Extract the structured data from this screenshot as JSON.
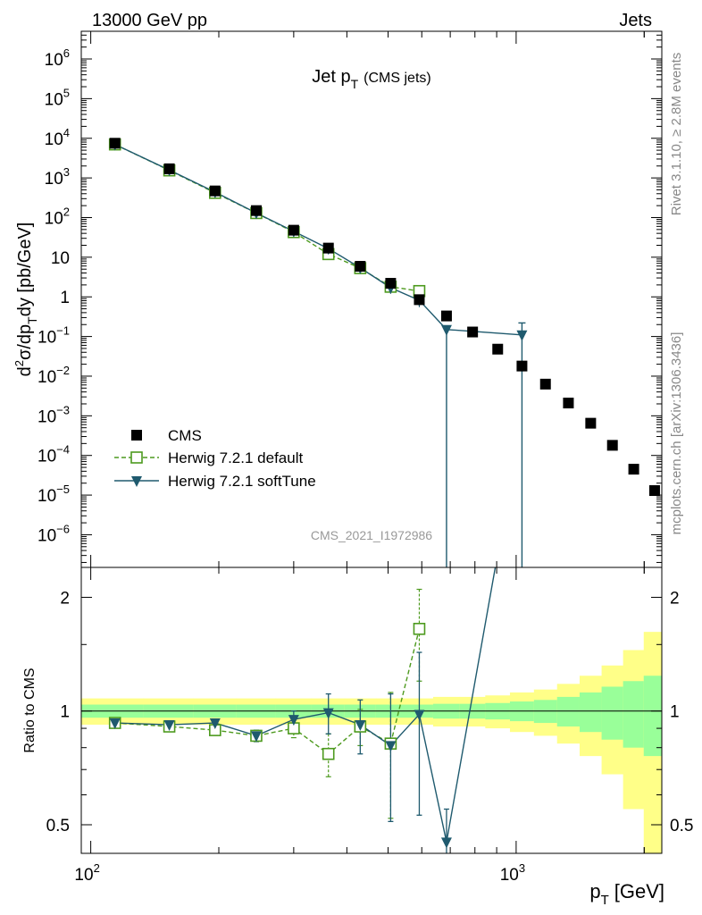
{
  "header": {
    "left_label": "13000 GeV pp",
    "right_label": "Jets"
  },
  "side_labels": {
    "rivet": "Rivet 3.1.10, ≥ 2.8M events",
    "mcplots": "mcplots.cern.ch [arXiv:1306.3436]"
  },
  "watermark": "CMS_2021_I1972986",
  "colors": {
    "cms": "#000000",
    "herwig_default": "#4d9a1e",
    "herwig_softtune": "#1f5a6e",
    "band_inner": "#99ff99",
    "band_outer": "#ffff88"
  },
  "chart_data": [
    {
      "type": "line",
      "title_main": "Jet p",
      "title_sub": "T",
      "title_extra": "(CMS jets)",
      "ylabel": "d²σ/dp_T dy [pb/GeV]",
      "xscale": "log",
      "yscale": "log",
      "xlim": [
        95,
        2200
      ],
      "ylim": [
        1.5e-07,
        5000000.0
      ],
      "y_ticks": [
        {
          "v": 1000000.0,
          "base": "10",
          "exp": "6"
        },
        {
          "v": 100000.0,
          "base": "10",
          "exp": "5"
        },
        {
          "v": 10000.0,
          "base": "10",
          "exp": "4"
        },
        {
          "v": 1000.0,
          "base": "10",
          "exp": "3"
        },
        {
          "v": 100.0,
          "base": "10",
          "exp": "2"
        },
        {
          "v": 10,
          "base": "10",
          "exp": ""
        },
        {
          "v": 1,
          "base": "1",
          "exp": ""
        },
        {
          "v": 0.1,
          "base": "10",
          "exp": "−1"
        },
        {
          "v": 0.01,
          "base": "10",
          "exp": "−2"
        },
        {
          "v": 0.001,
          "base": "10",
          "exp": "−3"
        },
        {
          "v": 0.0001,
          "base": "10",
          "exp": "−4"
        },
        {
          "v": 1e-05,
          "base": "10",
          "exp": "−5"
        },
        {
          "v": 1e-06,
          "base": "10",
          "exp": "−6"
        }
      ],
      "legend": {
        "position": "lower-left",
        "entries": [
          {
            "key": "cms",
            "label": "CMS"
          },
          {
            "key": "herwig_default",
            "label": "Herwig 7.2.1 default"
          },
          {
            "key": "herwig_softtune",
            "label": "Herwig 7.2.1 softTune"
          }
        ]
      },
      "series": [
        {
          "key": "cms",
          "name": "CMS",
          "x": [
            114,
            153,
            196,
            245,
            300,
            362,
            430,
            507,
            592,
            686,
            790,
            905,
            1032,
            1172,
            1327,
            1497,
            1684,
            1890,
            2116
          ],
          "y": [
            7500,
            1700,
            470,
            150,
            48,
            17,
            5.9,
            2.2,
            0.85,
            0.33,
            0.13,
            0.048,
            0.018,
            0.0063,
            0.0021,
            0.00065,
            0.00018,
            4.5e-05,
            1.3e-05
          ]
        },
        {
          "key": "herwig_default",
          "name": "Herwig 7.2.1 default",
          "x": [
            114,
            153,
            196,
            245,
            300,
            362,
            430,
            507,
            592
          ],
          "y": [
            7000,
            1550,
            420,
            130,
            43,
            12,
            5.3,
            1.8,
            1.4
          ]
        },
        {
          "key": "herwig_softtune",
          "name": "Herwig 7.2.1 softTune",
          "x": [
            114,
            153,
            196,
            245,
            300,
            362,
            430,
            507,
            592,
            686,
            1032
          ],
          "y": [
            7000,
            1580,
            440,
            130,
            45,
            16.5,
            5.4,
            1.7,
            0.82,
            0.15,
            0.11
          ]
        }
      ]
    },
    {
      "type": "line",
      "ylabel": "Ratio to CMS",
      "xlabel_main": "p",
      "xlabel_sub": "T",
      "xlabel_unit": "[GeV]",
      "xscale": "log",
      "yscale": "log",
      "xlim": [
        95,
        2200
      ],
      "ylim": [
        0.42,
        2.4
      ],
      "y_ticks": [
        {
          "v": 0.5,
          "label": "0.5"
        },
        {
          "v": 1,
          "label": "1"
        },
        {
          "v": 2,
          "label": "2"
        }
      ],
      "x_ticks": [
        {
          "v": 100,
          "base": "10",
          "exp": "2"
        },
        {
          "v": 1000,
          "base": "10",
          "exp": "3"
        }
      ],
      "bands": {
        "edges": [
          95,
          133,
          174,
          220,
          272,
          330,
          395,
          468,
          548,
          638,
          737,
          846,
          967,
          1101,
          1248,
          1410,
          1588,
          1784,
          1995,
          2200
        ],
        "inner_half_width": [
          0.04,
          0.04,
          0.04,
          0.04,
          0.04,
          0.04,
          0.04,
          0.04,
          0.04,
          0.045,
          0.045,
          0.05,
          0.06,
          0.07,
          0.09,
          0.12,
          0.16,
          0.2,
          0.24
        ],
        "outer_half_width": [
          0.08,
          0.08,
          0.08,
          0.08,
          0.08,
          0.08,
          0.08,
          0.08,
          0.08,
          0.09,
          0.09,
          0.1,
          0.12,
          0.14,
          0.18,
          0.24,
          0.32,
          0.45,
          0.62
        ]
      },
      "series": [
        {
          "key": "herwig_default",
          "name": "Herwig 7.2.1 default",
          "x": [
            114,
            153,
            196,
            245,
            300,
            362,
            430,
            507,
            592
          ],
          "y": [
            0.93,
            0.91,
            0.89,
            0.86,
            0.9,
            0.77,
            0.91,
            0.82,
            1.65
          ],
          "err": [
            0.01,
            0.01,
            0.015,
            0.03,
            0.05,
            0.1,
            0.1,
            0.3,
            0.45
          ]
        },
        {
          "key": "herwig_softtune",
          "name": "Herwig 7.2.1 softTune",
          "x": [
            114,
            153,
            196,
            245,
            300,
            362,
            430,
            507,
            592,
            686,
            1032
          ],
          "y": [
            0.93,
            0.92,
            0.93,
            0.86,
            0.95,
            0.99,
            0.92,
            0.81,
            0.98,
            0.45,
            6.0
          ],
          "err": [
            0.01,
            0.01,
            0.015,
            0.03,
            0.05,
            0.12,
            0.15,
            0.3,
            0.45,
            0.1,
            0
          ]
        }
      ]
    }
  ]
}
